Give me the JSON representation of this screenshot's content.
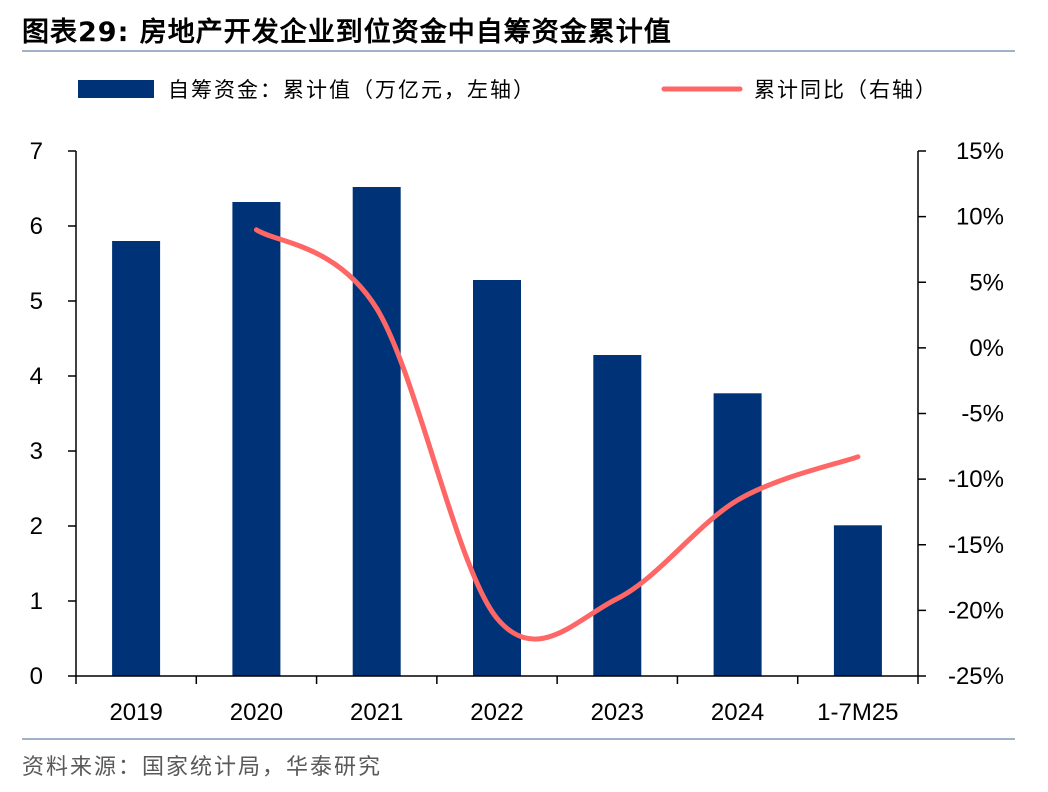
{
  "figure": {
    "title": "图表29:  房地产开发企业到位资金中自筹资金累计值",
    "source": "资料来源：国家统计局，华泰研究"
  },
  "chart_data": {
    "type": "bar+line",
    "title": "",
    "categories": [
      "2019",
      "2020",
      "2021",
      "2022",
      "2023",
      "2024",
      "1-7M25"
    ],
    "series": [
      {
        "name": "自筹资金：累计值（万亿元，左轴）",
        "type": "bar",
        "axis": "left",
        "color": "#003278",
        "values": [
          5.8,
          6.32,
          6.52,
          5.28,
          4.28,
          3.77,
          2.01
        ]
      },
      {
        "name": "累计同比（右轴）",
        "type": "line",
        "axis": "right",
        "color": "#ff6666",
        "values": [
          null,
          9.0,
          3.0,
          -20.6,
          -19.1,
          -11.6,
          -8.3
        ]
      }
    ],
    "left_axis": {
      "min": 0,
      "max": 7,
      "ticks": [
        0,
        1,
        2,
        3,
        4,
        5,
        6,
        7
      ],
      "tick_labels": [
        "0",
        "1",
        "2",
        "3",
        "4",
        "5",
        "6",
        "7"
      ]
    },
    "right_axis": {
      "min": -25,
      "max": 15,
      "ticks": [
        -25,
        -20,
        -15,
        -10,
        -5,
        0,
        5,
        10,
        15
      ],
      "tick_labels": [
        "-25%",
        "-20%",
        "-15%",
        "-10%",
        "-5%",
        "0%",
        "5%",
        "10%",
        "15%"
      ]
    },
    "grid": false,
    "legend_position": "top"
  }
}
